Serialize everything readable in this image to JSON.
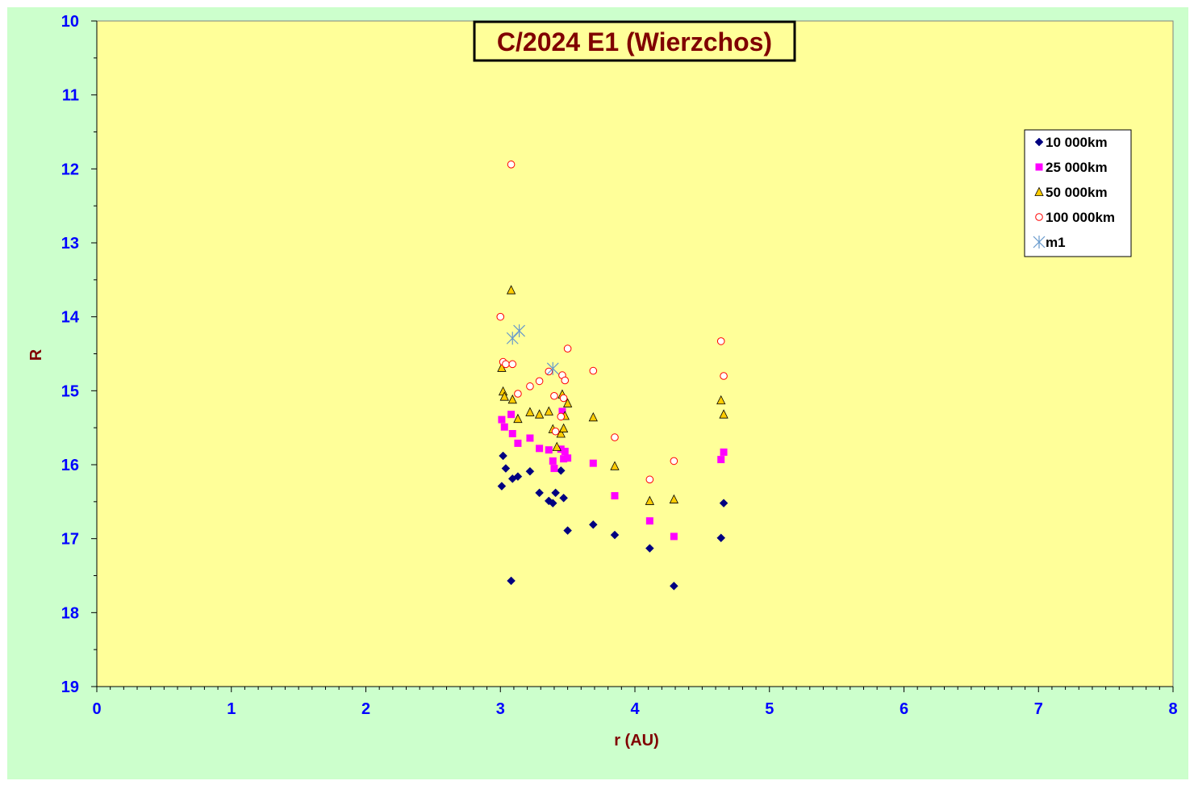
{
  "chart_data": {
    "type": "scatter",
    "title": "C/2024 E1 (Wierzchos)",
    "xlabel": "r (AU)",
    "ylabel": "R",
    "xlim": [
      0,
      8
    ],
    "ylim": [
      10,
      19
    ],
    "y_inverted": true,
    "xticks": [
      "0",
      "1",
      "2",
      "3",
      "4",
      "5",
      "6",
      "7",
      "8"
    ],
    "yticks": [
      "10",
      "11",
      "12",
      "13",
      "14",
      "15",
      "16",
      "17",
      "18",
      "19"
    ],
    "legend_position": "top-right",
    "grid": false,
    "colors": {
      "plot_bg": "#ffff99",
      "chart_bg": "#ccffcc",
      "title": "#800000",
      "ticks": "#0000ff"
    },
    "series": [
      {
        "name": "10 000km",
        "marker": "diamond",
        "color": "#000080",
        "points": [
          [
            3.01,
            16.29
          ],
          [
            3.02,
            15.88
          ],
          [
            3.04,
            16.05
          ],
          [
            3.08,
            17.57
          ],
          [
            3.09,
            16.19
          ],
          [
            3.13,
            16.16
          ],
          [
            3.22,
            16.09
          ],
          [
            3.29,
            16.38
          ],
          [
            3.36,
            16.49
          ],
          [
            3.39,
            16.52
          ],
          [
            3.41,
            16.38
          ],
          [
            3.45,
            16.08
          ],
          [
            3.47,
            16.45
          ],
          [
            3.5,
            16.89
          ],
          [
            3.69,
            16.81
          ],
          [
            3.85,
            16.95
          ],
          [
            4.11,
            17.13
          ],
          [
            4.29,
            17.64
          ],
          [
            4.64,
            16.99
          ],
          [
            4.66,
            16.52
          ]
        ]
      },
      {
        "name": "25 000km",
        "marker": "square",
        "color": "#ff00ff",
        "points": [
          [
            3.01,
            15.39
          ],
          [
            3.03,
            15.49
          ],
          [
            3.08,
            15.32
          ],
          [
            3.09,
            15.58
          ],
          [
            3.13,
            15.71
          ],
          [
            3.22,
            15.64
          ],
          [
            3.29,
            15.78
          ],
          [
            3.36,
            15.8
          ],
          [
            3.39,
            15.95
          ],
          [
            3.4,
            16.05
          ],
          [
            3.45,
            15.79
          ],
          [
            3.46,
            15.28
          ],
          [
            3.47,
            15.92
          ],
          [
            3.48,
            15.82
          ],
          [
            3.5,
            15.91
          ],
          [
            3.69,
            15.98
          ],
          [
            3.85,
            16.42
          ],
          [
            4.11,
            16.76
          ],
          [
            4.29,
            16.97
          ],
          [
            4.64,
            15.93
          ],
          [
            4.66,
            15.83
          ]
        ]
      },
      {
        "name": "50 000km",
        "marker": "triangle",
        "color": "#ffcc00",
        "points": [
          [
            3.01,
            14.69
          ],
          [
            3.02,
            15.01
          ],
          [
            3.03,
            15.08
          ],
          [
            3.08,
            13.64
          ],
          [
            3.09,
            15.12
          ],
          [
            3.13,
            15.38
          ],
          [
            3.22,
            15.29
          ],
          [
            3.29,
            15.32
          ],
          [
            3.36,
            15.28
          ],
          [
            3.39,
            15.52
          ],
          [
            3.42,
            15.76
          ],
          [
            3.45,
            15.58
          ],
          [
            3.46,
            15.05
          ],
          [
            3.47,
            15.51
          ],
          [
            3.48,
            15.34
          ],
          [
            3.5,
            15.17
          ],
          [
            3.69,
            15.36
          ],
          [
            3.85,
            16.02
          ],
          [
            4.11,
            16.49
          ],
          [
            4.29,
            16.47
          ],
          [
            4.64,
            15.13
          ],
          [
            4.66,
            15.32
          ]
        ]
      },
      {
        "name": "100 000km",
        "marker": "circle",
        "color": "#ff0000",
        "points": [
          [
            3.0,
            14.0
          ],
          [
            3.02,
            14.61
          ],
          [
            3.04,
            14.64
          ],
          [
            3.08,
            11.94
          ],
          [
            3.09,
            14.64
          ],
          [
            3.13,
            15.04
          ],
          [
            3.22,
            14.94
          ],
          [
            3.29,
            14.87
          ],
          [
            3.36,
            14.74
          ],
          [
            3.4,
            15.07
          ],
          [
            3.41,
            15.55
          ],
          [
            3.45,
            15.35
          ],
          [
            3.46,
            14.79
          ],
          [
            3.47,
            15.1
          ],
          [
            3.48,
            14.86
          ],
          [
            3.5,
            14.43
          ],
          [
            3.69,
            14.73
          ],
          [
            3.85,
            15.63
          ],
          [
            4.11,
            16.2
          ],
          [
            4.29,
            15.95
          ],
          [
            4.64,
            14.33
          ],
          [
            4.66,
            14.8
          ]
        ]
      },
      {
        "name": "m1",
        "marker": "star",
        "color": "#6699cc",
        "points": [
          [
            3.09,
            14.29
          ],
          [
            3.14,
            14.19
          ],
          [
            3.39,
            14.7
          ]
        ]
      }
    ]
  }
}
